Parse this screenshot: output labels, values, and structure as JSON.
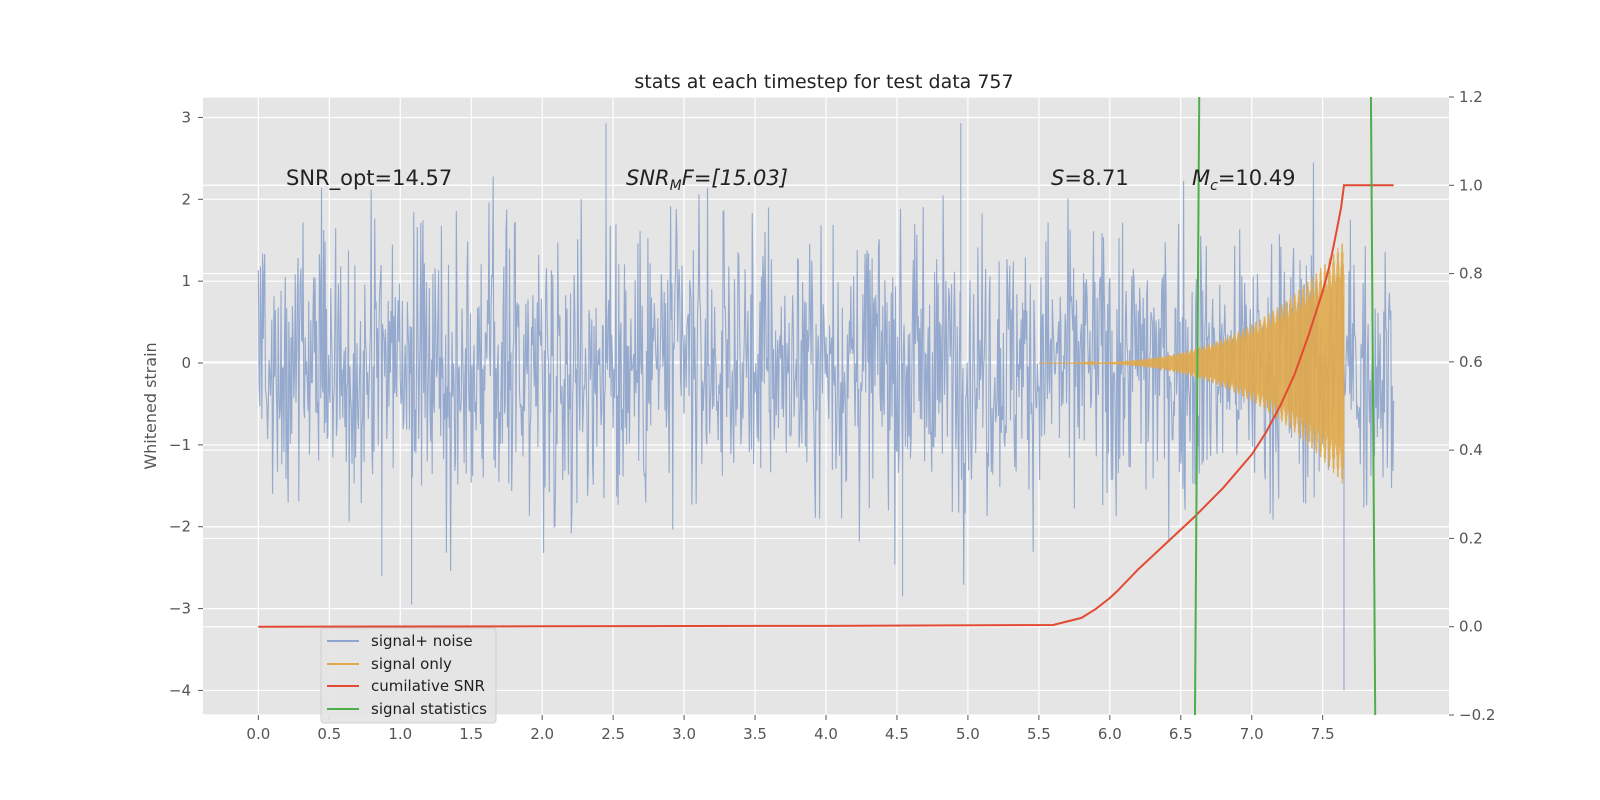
{
  "chart_data": {
    "type": "line",
    "title": "stats at each timestep for test data 757",
    "xlabel": "",
    "ylabel": "Whitened strain",
    "xlim": [
      -0.39,
      8.39
    ],
    "ylim": [
      -4.3,
      3.25
    ],
    "y2lim": [
      -0.2,
      1.2
    ],
    "xticks": [
      0.0,
      0.5,
      1.0,
      1.5,
      2.0,
      2.5,
      3.0,
      3.5,
      4.0,
      4.5,
      5.0,
      5.5,
      6.0,
      6.5,
      7.0,
      7.5
    ],
    "xtick_labels": [
      "0.0",
      "0.5",
      "1.0",
      "1.5",
      "2.0",
      "2.5",
      "3.0",
      "3.5",
      "4.0",
      "4.5",
      "5.0",
      "5.5",
      "6.0",
      "6.5",
      "7.0",
      "7.5"
    ],
    "yticks": [
      -4,
      -3,
      -2,
      -1,
      0,
      1,
      2,
      3
    ],
    "ytick_labels": [
      "−4",
      "−3",
      "−2",
      "−1",
      "0",
      "1",
      "2",
      "3"
    ],
    "y2ticks": [
      -0.2,
      0.0,
      0.2,
      0.4,
      0.6,
      0.8,
      1.0,
      1.2
    ],
    "y2tick_labels": [
      "−0.2",
      "0.0",
      "0.2",
      "0.4",
      "0.6",
      "0.8",
      "1.0",
      "1.2"
    ],
    "grid": true,
    "legend_position": "lower-left",
    "legend": [
      "signal+ noise",
      "signal only",
      "cumilative SNR",
      "signal statistics"
    ],
    "annotations": [
      "SNR_opt=14.57",
      "SNR",
      "M",
      "F=[15.03]",
      "S",
      "=8.71",
      "M",
      "c",
      "=10.49"
    ],
    "series": [
      {
        "name": "signal+ noise",
        "kind": "noise",
        "t_start": 0.0,
        "t_end": 8.0,
        "amplitude_sigma": 0.85,
        "min": -4.0,
        "max": 2.93,
        "color": "#8fa5cb"
      },
      {
        "name": "signal only",
        "kind": "chirp",
        "t_start": 5.5,
        "t_end": 7.65,
        "amplitude_start": 0.0,
        "amplitude_end": 1.5,
        "color": "#e0a84a"
      },
      {
        "name": "cumilative SNR",
        "axis": "right",
        "x": [
          0.0,
          2.0,
          4.0,
          5.6,
          5.8,
          5.9,
          6.0,
          6.05,
          6.2,
          6.4,
          6.6,
          6.8,
          7.0,
          7.1,
          7.2,
          7.3,
          7.4,
          7.5,
          7.55,
          7.6,
          7.63,
          7.65,
          8.0
        ],
        "values": [
          0.0,
          0.001,
          0.002,
          0.004,
          0.02,
          0.04,
          0.065,
          0.08,
          0.13,
          0.19,
          0.25,
          0.315,
          0.39,
          0.44,
          0.5,
          0.57,
          0.66,
          0.76,
          0.82,
          0.9,
          0.95,
          1.0,
          1.0
        ],
        "color": "#e24a33"
      },
      {
        "name": "signal statistics",
        "axis": "right",
        "lines": [
          {
            "x": [
              6.6,
              6.63
            ],
            "values": [
              -0.2,
              1.2
            ]
          },
          {
            "x": [
              7.84,
              7.87
            ],
            "values": [
              1.2,
              -0.2
            ]
          }
        ],
        "color": "#4daf4a"
      }
    ]
  },
  "colors": {
    "axes_bg": "#e5e5e5",
    "grid": "#ffffff",
    "noise": "#8fa5cb",
    "signal": "#e0a84a",
    "snr": "#e24a33",
    "stats": "#4daf4a"
  }
}
